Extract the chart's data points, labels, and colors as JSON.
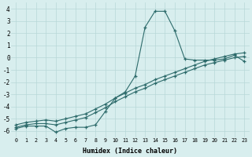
{
  "xlabel": "Humidex (Indice chaleur)",
  "x": [
    0,
    1,
    2,
    3,
    4,
    5,
    6,
    7,
    8,
    9,
    10,
    11,
    12,
    13,
    14,
    15,
    16,
    17,
    18,
    19,
    20,
    21,
    22,
    23
  ],
  "line1": [
    -5.8,
    -5.6,
    -5.6,
    -5.6,
    -6.1,
    -5.8,
    -5.7,
    -5.7,
    -5.5,
    -4.4,
    -3.3,
    -2.8,
    -1.5,
    2.5,
    3.8,
    3.8,
    2.2,
    -0.1,
    -0.2,
    -0.2,
    -0.2,
    -0.1,
    0.2,
    -0.3
  ],
  "line2": [
    -5.7,
    -5.5,
    -5.4,
    -5.4,
    -5.5,
    -5.3,
    -5.1,
    -4.9,
    -4.5,
    -4.1,
    -3.6,
    -3.2,
    -2.8,
    -2.5,
    -2.1,
    -1.8,
    -1.5,
    -1.2,
    -0.9,
    -0.6,
    -0.4,
    -0.2,
    0.0,
    0.1
  ],
  "line3": [
    -5.5,
    -5.3,
    -5.2,
    -5.1,
    -5.2,
    -5.0,
    -4.8,
    -4.6,
    -4.2,
    -3.8,
    -3.3,
    -2.9,
    -2.5,
    -2.2,
    -1.8,
    -1.5,
    -1.2,
    -0.9,
    -0.6,
    -0.3,
    -0.1,
    0.1,
    0.3,
    0.4
  ],
  "line_color": "#2d6b6b",
  "bg_color": "#d8eeee",
  "grid_color": "#b8d8d8",
  "ylim": [
    -6.5,
    4.5
  ],
  "xlim": [
    -0.5,
    23.5
  ],
  "yticks": [
    -6,
    -5,
    -4,
    -3,
    -2,
    -1,
    0,
    1,
    2,
    3,
    4
  ],
  "xticks": [
    0,
    1,
    2,
    3,
    4,
    5,
    6,
    7,
    8,
    9,
    10,
    11,
    12,
    13,
    14,
    15,
    16,
    17,
    18,
    19,
    20,
    21,
    22,
    23
  ]
}
